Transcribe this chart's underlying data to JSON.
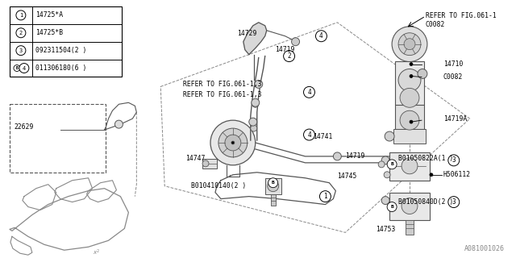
{
  "bg_color": "#ffffff",
  "line_color": "#000000",
  "gray": "#888888",
  "darkgray": "#555555",
  "title_ref": "A081001026",
  "legend": [
    {
      "num": "1",
      "text": "14725*A",
      "b_prefix": false
    },
    {
      "num": "2",
      "text": "14725*B",
      "b_prefix": false
    },
    {
      "num": "3",
      "text": "092311504(2 )",
      "b_prefix": false
    },
    {
      "num": "4",
      "text": "011306180(6 )",
      "b_prefix": true
    }
  ],
  "fig_w": 6.4,
  "fig_h": 3.2,
  "dpi": 100
}
